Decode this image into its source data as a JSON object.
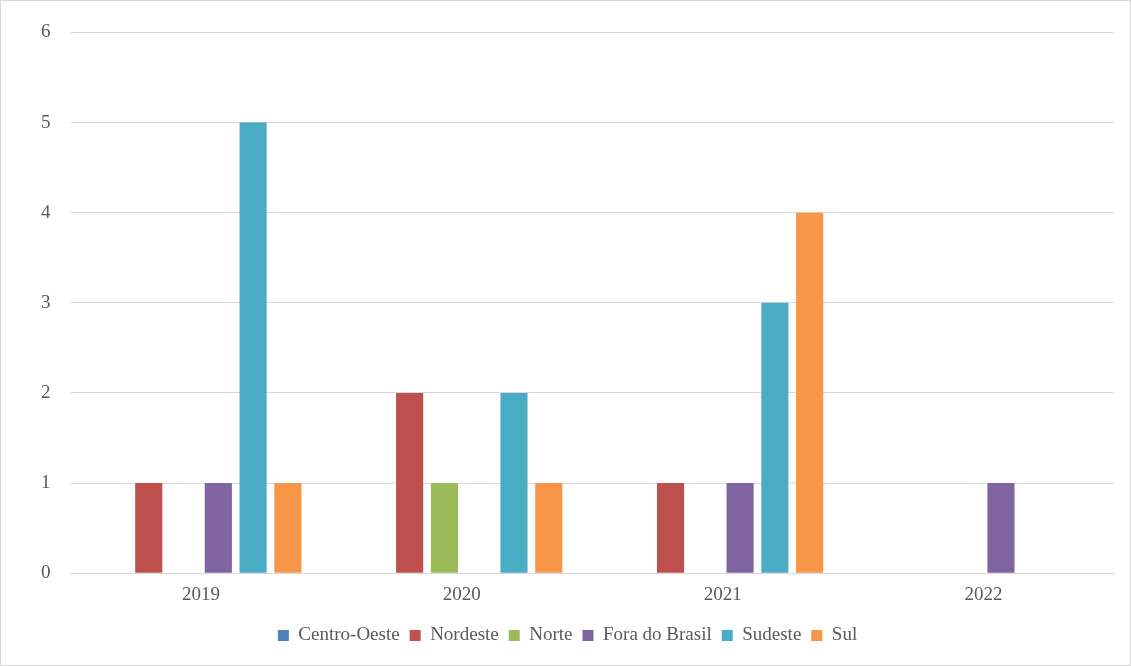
{
  "chart_data": {
    "type": "bar",
    "categories": [
      "2019",
      "2020",
      "2021",
      "2022"
    ],
    "series": [
      {
        "name": "Centro-Oeste",
        "color": "#4f81bd",
        "values": [
          0,
          0,
          0,
          0
        ]
      },
      {
        "name": "Nordeste",
        "color": "#c0504d",
        "values": [
          1,
          2,
          1,
          0
        ]
      },
      {
        "name": "Norte",
        "color": "#9bbb59",
        "values": [
          0,
          1,
          0,
          0
        ]
      },
      {
        "name": "Fora do Brasil",
        "color": "#8064a2",
        "values": [
          1,
          0,
          1,
          1
        ]
      },
      {
        "name": "Sudeste",
        "color": "#4bacc6",
        "values": [
          5,
          2,
          3,
          0
        ]
      },
      {
        "name": "Sul",
        "color": "#f79646",
        "values": [
          1,
          1,
          4,
          0
        ]
      }
    ],
    "ylim": [
      0,
      6
    ],
    "yticks": [
      0,
      1,
      2,
      3,
      4,
      5,
      6
    ],
    "grid": "y",
    "legend": "bottom"
  }
}
